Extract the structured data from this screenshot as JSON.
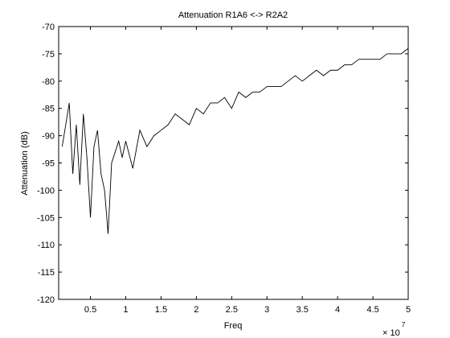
{
  "chart_data": {
    "type": "line",
    "title": "Attenuation R1A6 <-> R2A2",
    "xlabel": "Freq",
    "ylabel": "Attenuation (dB)",
    "x_multiplier": "× 10",
    "x_multiplier_exponent": "7",
    "xlim": [
      0.05,
      5.0
    ],
    "ylim": [
      -120,
      -70
    ],
    "xticks": [
      0.5,
      1,
      1.5,
      2,
      2.5,
      3,
      3.5,
      4,
      4.5,
      5
    ],
    "xtick_labels": [
      "0.5",
      "1",
      "1.5",
      "2",
      "2.5",
      "3",
      "3.5",
      "4",
      "4.5",
      "5"
    ],
    "yticks": [
      -70,
      -75,
      -80,
      -85,
      -90,
      -95,
      -100,
      -105,
      -110,
      -115,
      -120
    ],
    "ytick_labels": [
      "-70",
      "-75",
      "-80",
      "-85",
      "-90",
      "-95",
      "-100",
      "-105",
      "-110",
      "-115",
      "-120"
    ],
    "grid": false,
    "series": [
      {
        "color": "#000000",
        "x": [
          0.1,
          0.15,
          0.2,
          0.25,
          0.3,
          0.35,
          0.4,
          0.45,
          0.5,
          0.55,
          0.6,
          0.65,
          0.7,
          0.75,
          0.8,
          0.85,
          0.9,
          0.95,
          1.0,
          1.1,
          1.2,
          1.3,
          1.4,
          1.5,
          1.6,
          1.7,
          1.8,
          1.9,
          2.0,
          2.1,
          2.2,
          2.3,
          2.4,
          2.5,
          2.6,
          2.7,
          2.8,
          2.9,
          3.0,
          3.1,
          3.2,
          3.3,
          3.4,
          3.5,
          3.6,
          3.7,
          3.8,
          3.9,
          4.0,
          4.1,
          4.2,
          4.3,
          4.4,
          4.5,
          4.6,
          4.7,
          4.8,
          4.9,
          5.0
        ],
        "y": [
          -92,
          -88,
          -84,
          -97,
          -88,
          -99,
          -86,
          -94,
          -105,
          -92,
          -89,
          -97,
          -100,
          -108,
          -95,
          -93,
          -91,
          -94,
          -91,
          -96,
          -89,
          -92,
          -90,
          -89,
          -88,
          -86,
          -87,
          -88,
          -85,
          -86,
          -84,
          -84,
          -83,
          -85,
          -82,
          -83,
          -82,
          -82,
          -81,
          -81,
          -81,
          -80,
          -79,
          -80,
          -79,
          -78,
          -79,
          -78,
          -78,
          -77,
          -77,
          -76,
          -76,
          -76,
          -76,
          -75,
          -75,
          -75,
          -74
        ]
      }
    ]
  }
}
